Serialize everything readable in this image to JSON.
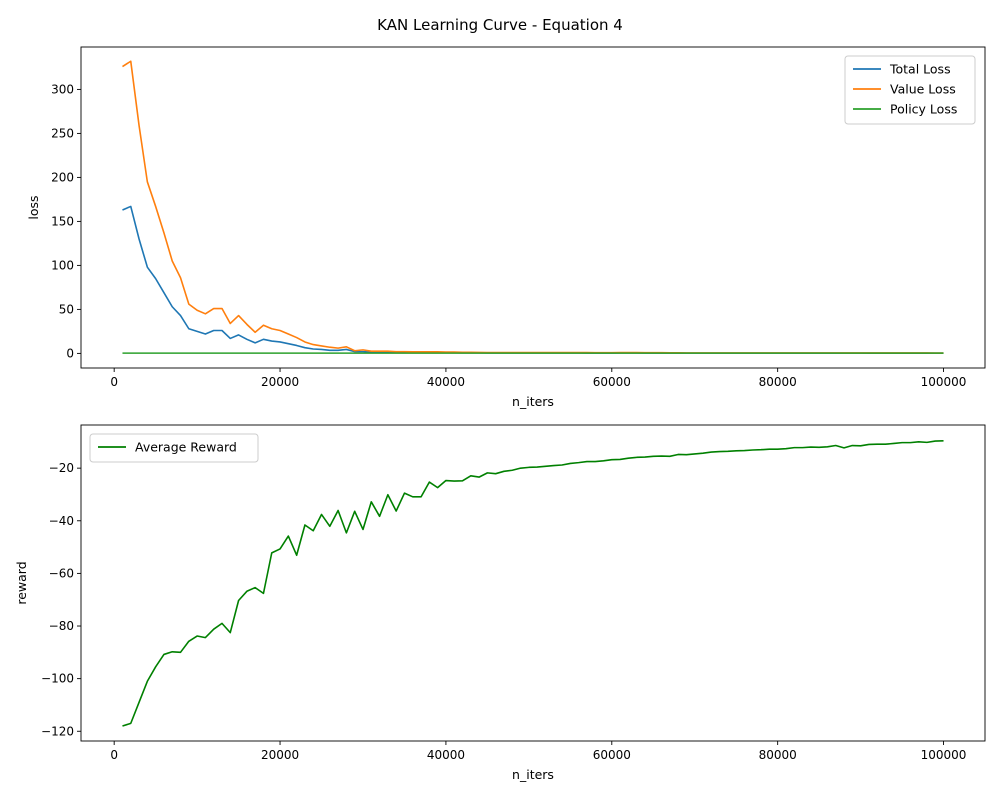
{
  "figure": {
    "title": "KAN Learning Curve - Equation 4"
  },
  "chart_data": [
    {
      "type": "line",
      "xlabel": "n_iters",
      "ylabel": "loss",
      "xlim": [
        -4000,
        105000
      ],
      "ylim": [
        -16.6,
        348.2
      ],
      "xticks": [
        0,
        20000,
        40000,
        60000,
        80000,
        100000
      ],
      "yticks": [
        0,
        50,
        100,
        150,
        200,
        250,
        300
      ],
      "legend_position": "top-right",
      "grid": false,
      "x": [
        1000,
        2000,
        3000,
        4000,
        5000,
        6000,
        7000,
        8000,
        9000,
        10000,
        11000,
        12000,
        13000,
        14000,
        15000,
        16000,
        17000,
        18000,
        19000,
        20000,
        21000,
        22000,
        23000,
        24000,
        25000,
        26000,
        27000,
        28000,
        29000,
        30000,
        31000,
        32000,
        33000,
        34000,
        35000,
        36000,
        37000,
        38000,
        39000,
        40000,
        41000,
        42000,
        43000,
        44000,
        45000,
        46000,
        47000,
        48000,
        49000,
        50000,
        51000,
        52000,
        53000,
        54000,
        55000,
        56000,
        57000,
        58000,
        59000,
        60000,
        61000,
        62000,
        63000,
        64000,
        65000,
        66000,
        67000,
        68000,
        69000,
        70000,
        71000,
        72000,
        73000,
        74000,
        75000,
        76000,
        77000,
        78000,
        79000,
        80000,
        81000,
        82000,
        83000,
        84000,
        85000,
        86000,
        87000,
        88000,
        89000,
        90000,
        91000,
        92000,
        93000,
        94000,
        95000,
        96000,
        97000,
        98000,
        99000,
        100000
      ],
      "series": [
        {
          "name": "Total Loss",
          "color": "#1f77b4",
          "values": [
            163,
            167,
            130,
            98,
            85,
            69,
            53,
            43,
            28,
            25,
            22,
            26,
            26,
            17,
            21,
            16,
            12,
            16,
            14,
            13,
            11,
            9,
            6.5,
            5,
            4.5,
            3.5,
            3.5,
            4.5,
            2,
            2,
            1.5,
            1.2,
            1.2,
            1,
            1,
            0.9,
            0.9,
            0.9,
            0.9,
            0.8,
            0.8,
            0.7,
            0.6,
            0.6,
            0.5,
            0.5,
            0.5,
            0.5,
            0.5,
            0.5,
            0.5,
            0.5,
            0.5,
            0.5,
            0.5,
            0.5,
            0.4,
            0.4,
            0.4,
            0.4,
            0.5,
            0.5,
            0.5,
            0.4,
            0.4,
            0.4,
            0.4,
            0.4,
            0.3,
            0.3,
            0.3,
            0.3,
            0.3,
            0.3,
            0.3,
            0.3,
            0.3,
            0.3,
            0.3,
            0.3,
            0.3,
            0.3,
            0.3,
            0.3,
            0.3,
            0.3,
            0.3,
            0.3,
            0.3,
            0.3,
            0.2,
            0.2,
            0.2,
            0.2,
            0.2,
            0.2,
            0.2,
            0.2,
            0.2,
            0.2
          ]
        },
        {
          "name": "Value Loss",
          "color": "#ff7f0e",
          "values": [
            326,
            332,
            259,
            195,
            167,
            137,
            105,
            86,
            56,
            49,
            45,
            51,
            51,
            34,
            43,
            33,
            24,
            32,
            28,
            26,
            22,
            18,
            13,
            10,
            8.5,
            7,
            6,
            7.5,
            3,
            4,
            2.5,
            2.5,
            2.5,
            2,
            2,
            1.8,
            1.8,
            1.8,
            1.8,
            1.6,
            1.5,
            1.3,
            1.2,
            1.1,
            1,
            1,
            1,
            1,
            1,
            1,
            1,
            1,
            1,
            1,
            1,
            0.9,
            0.9,
            0.8,
            0.8,
            0.8,
            0.9,
            0.9,
            0.9,
            0.8,
            0.8,
            0.8,
            0.7,
            0.7,
            0.6,
            0.6,
            0.6,
            0.6,
            0.6,
            0.6,
            0.6,
            0.6,
            0.6,
            0.6,
            0.6,
            0.6,
            0.6,
            0.6,
            0.6,
            0.6,
            0.6,
            0.6,
            0.6,
            0.5,
            0.5,
            0.5,
            0.5,
            0.5,
            0.5,
            0.5,
            0.5,
            0.5,
            0.5,
            0.5,
            0.4,
            0.4
          ]
        },
        {
          "name": "Policy Loss",
          "color": "#2ca02c",
          "values": [
            0.3,
            0.3,
            0.3,
            0.3,
            0.3,
            0.3,
            0.3,
            0.3,
            0.3,
            0.3,
            0.3,
            0.3,
            0.3,
            0.3,
            0.3,
            0.3,
            0.3,
            0.3,
            0.3,
            0.3,
            0.3,
            0.3,
            0.3,
            0.3,
            0.3,
            0.3,
            0.3,
            0.3,
            0.3,
            0.3,
            0.3,
            0.3,
            0.3,
            0.3,
            0.3,
            0.3,
            0.3,
            0.3,
            0.3,
            0.3,
            0.3,
            0.3,
            0.3,
            0.3,
            0.3,
            0.3,
            0.3,
            0.3,
            0.3,
            0.3,
            0.3,
            0.3,
            0.3,
            0.3,
            0.3,
            0.3,
            0.3,
            0.3,
            0.3,
            0.3,
            0.3,
            0.3,
            0.3,
            0.3,
            0.3,
            0.3,
            0.3,
            0.3,
            0.3,
            0.3,
            0.3,
            0.3,
            0.3,
            0.3,
            0.3,
            0.3,
            0.3,
            0.3,
            0.3,
            0.3,
            0.3,
            0.3,
            0.3,
            0.3,
            0.3,
            0.3,
            0.3,
            0.3,
            0.3,
            0.3,
            0.3,
            0.3,
            0.3,
            0.3,
            0.3,
            0.3,
            0.3,
            0.3,
            0.3,
            0.3
          ]
        }
      ]
    },
    {
      "type": "line",
      "xlabel": "n_iters",
      "ylabel": "reward",
      "xlim": [
        -4000,
        105000
      ],
      "ylim": [
        -123.7,
        -3.6
      ],
      "xticks": [
        0,
        20000,
        40000,
        60000,
        80000,
        100000
      ],
      "yticks": [
        -120,
        -100,
        -80,
        -60,
        -40,
        -20
      ],
      "legend_position": "top-left",
      "grid": false,
      "x": [
        1000,
        2000,
        3000,
        4000,
        5000,
        6000,
        7000,
        8000,
        9000,
        10000,
        11000,
        12000,
        13000,
        14000,
        15000,
        16000,
        17000,
        18000,
        19000,
        20000,
        21000,
        22000,
        23000,
        24000,
        25000,
        26000,
        27000,
        28000,
        29000,
        30000,
        31000,
        32000,
        33000,
        34000,
        35000,
        36000,
        37000,
        38000,
        39000,
        40000,
        41000,
        42000,
        43000,
        44000,
        45000,
        46000,
        47000,
        48000,
        49000,
        50000,
        51000,
        52000,
        53000,
        54000,
        55000,
        56000,
        57000,
        58000,
        59000,
        60000,
        61000,
        62000,
        63000,
        64000,
        65000,
        66000,
        67000,
        68000,
        69000,
        70000,
        71000,
        72000,
        73000,
        74000,
        75000,
        76000,
        77000,
        78000,
        79000,
        80000,
        81000,
        82000,
        83000,
        84000,
        85000,
        86000,
        87000,
        88000,
        89000,
        90000,
        91000,
        92000,
        93000,
        94000,
        95000,
        96000,
        97000,
        98000,
        99000,
        100000
      ],
      "series": [
        {
          "name": "Average Reward",
          "color": "#008000",
          "values": [
            -118,
            -117,
            -109,
            -101,
            -95.5,
            -90.8,
            -89.8,
            -90,
            -85.8,
            -83.8,
            -84.4,
            -81.2,
            -79,
            -82.5,
            -70.3,
            -66.8,
            -65.4,
            -67.6,
            -52.2,
            -50.7,
            -45.8,
            -53.1,
            -41.6,
            -43.8,
            -37.6,
            -42.1,
            -36.1,
            -44.6,
            -36.4,
            -43.3,
            -32.8,
            -38.3,
            -30.1,
            -36.3,
            -29.5,
            -30.9,
            -30.9,
            -25.3,
            -27.4,
            -24.7,
            -24.9,
            -24.8,
            -22.9,
            -23.4,
            -21.8,
            -22.1,
            -21.2,
            -20.8,
            -20,
            -19.7,
            -19.6,
            -19.3,
            -19,
            -18.8,
            -18.2,
            -17.9,
            -17.5,
            -17.5,
            -17.2,
            -16.8,
            -16.7,
            -16.2,
            -15.9,
            -15.8,
            -15.5,
            -15.4,
            -15.5,
            -14.8,
            -14.9,
            -14.6,
            -14.3,
            -13.9,
            -13.7,
            -13.6,
            -13.4,
            -13.3,
            -13.1,
            -13,
            -12.8,
            -12.8,
            -12.6,
            -12.2,
            -12.2,
            -12,
            -12.1,
            -11.9,
            -11.4,
            -12.3,
            -11.4,
            -11.5,
            -11,
            -10.9,
            -10.9,
            -10.6,
            -10.3,
            -10.3,
            -10,
            -10.2,
            -9.7,
            -9.6
          ]
        }
      ]
    }
  ]
}
